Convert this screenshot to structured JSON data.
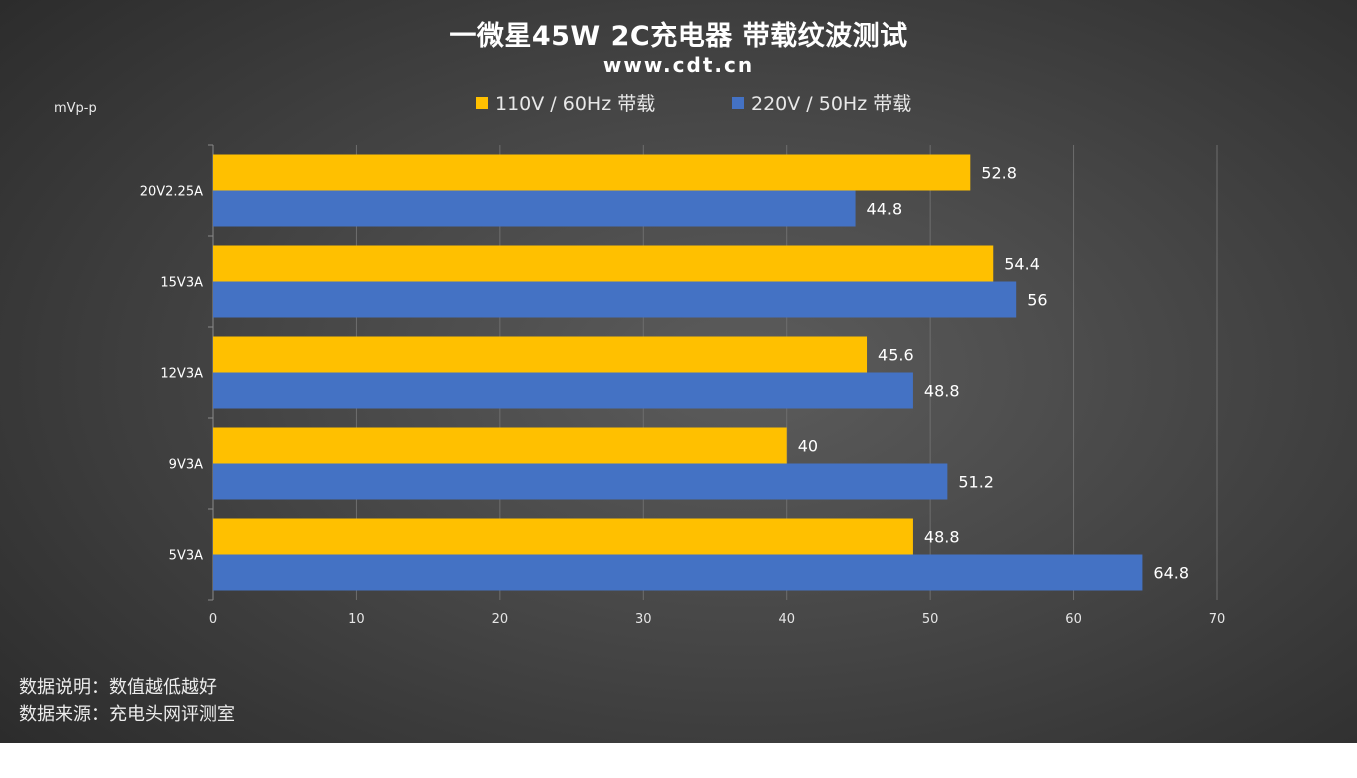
{
  "title": "一微星45W 2C充电器 带载纹波测试",
  "subtitle": "www.cdt.cn",
  "notes": [
    "数据说明：数值越低越好",
    "数据来源：充电头网评测室"
  ],
  "chart_data": {
    "type": "bar",
    "orientation": "horizontal",
    "ylabel": "mVp-p",
    "categories": [
      "20V2.25A",
      "15V3A",
      "12V3A",
      "9V3A",
      "5V3A"
    ],
    "series": [
      {
        "name": "110V / 60Hz 带载",
        "color": "#FFC000",
        "values": [
          52.8,
          54.4,
          45.6,
          40,
          48.8
        ]
      },
      {
        "name": "220V / 50Hz 带载",
        "color": "#4472C4",
        "values": [
          44.8,
          56,
          48.8,
          51.2,
          64.8
        ]
      }
    ],
    "xlim": [
      0,
      70
    ],
    "xticks": [
      0,
      10,
      20,
      30,
      40,
      50,
      60,
      70
    ],
    "grid": true,
    "legend": "top-center"
  }
}
